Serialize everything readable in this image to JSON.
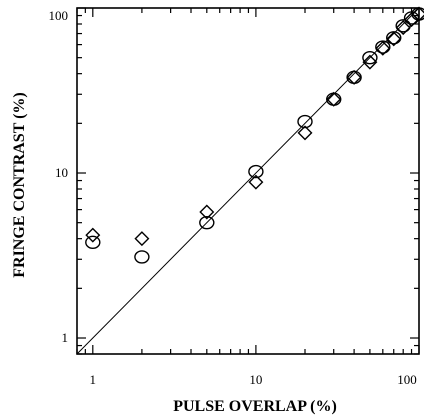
{
  "chart_data": {
    "type": "scatter",
    "xscale": "log",
    "yscale": "log",
    "xlim": [
      0.8,
      100
    ],
    "ylim": [
      0.8,
      100
    ],
    "xlabel": "PULSE OVERLAP (%)",
    "ylabel": "FRINGE CONTRAST (%)",
    "xticks": [
      "1",
      "10",
      "100"
    ],
    "yticks": [
      "1",
      "10",
      "100"
    ],
    "grid": false,
    "series": [
      {
        "marker": "circle",
        "x": [
          1,
          2,
          5,
          10,
          20,
          30,
          40,
          50,
          60,
          70,
          80,
          90,
          100
        ],
        "y": [
          3.8,
          3.1,
          5.0,
          10.2,
          20.5,
          28,
          38,
          50,
          58,
          66,
          78,
          87,
          92
        ]
      },
      {
        "marker": "diamond",
        "x": [
          1,
          2,
          5,
          10,
          20,
          30,
          40,
          50,
          60,
          70,
          80,
          90,
          100
        ],
        "y": [
          4.2,
          4.0,
          5.8,
          8.8,
          17.5,
          28,
          38,
          47,
          57,
          65,
          76,
          85,
          92
        ]
      }
    ],
    "reference_line": {
      "x": [
        0.8,
        100
      ],
      "y": [
        0.8,
        100
      ]
    }
  }
}
